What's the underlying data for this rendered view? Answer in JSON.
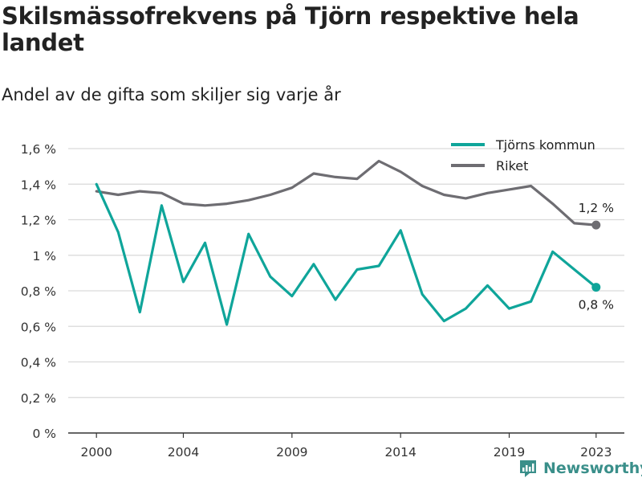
{
  "title": "Skilsmässofrekvens på Tjörn respektive hela landet",
  "subtitle": "Andel av de gifta som skiljer sig varje år",
  "brand": {
    "name": "Newsworthy",
    "icon": "newsworthy-logo-icon"
  },
  "colors": {
    "tjorn": "#0fa59a",
    "riket": "#6e6d72",
    "grid": "#d9d9d9",
    "axis": "#333333",
    "brand": "#3a8f8a"
  },
  "chart_data": {
    "type": "line",
    "x": [
      2000,
      2001,
      2002,
      2003,
      2004,
      2005,
      2006,
      2007,
      2008,
      2009,
      2010,
      2011,
      2012,
      2013,
      2014,
      2015,
      2016,
      2017,
      2018,
      2019,
      2020,
      2021,
      2022,
      2023
    ],
    "xticks": [
      2000,
      2004,
      2009,
      2014,
      2019,
      2023
    ],
    "xtick_labels": [
      "2000",
      "2004",
      "2009",
      "2014",
      "2019",
      "2023"
    ],
    "xlim": [
      1998.7,
      2024.3
    ],
    "ylim": [
      0,
      1.6
    ],
    "yticks": [
      0,
      0.2,
      0.4,
      0.6,
      0.8,
      1.0,
      1.2,
      1.4,
      1.6
    ],
    "ytick_labels": [
      "0 %",
      "0,2 %",
      "0,4 %",
      "0,6 %",
      "0,8 %",
      "1 %",
      "1,2 %",
      "1,4 %",
      "1,6 %"
    ],
    "grid": true,
    "legend": "top-right",
    "xlabel": "",
    "ylabel": "",
    "series": [
      {
        "name": "Tjörns kommun",
        "color": "#0fa59a",
        "values": [
          1.4,
          1.13,
          0.68,
          1.28,
          0.85,
          1.07,
          0.61,
          1.12,
          0.88,
          0.77,
          0.95,
          0.75,
          0.92,
          0.94,
          1.14,
          0.78,
          0.63,
          0.7,
          0.83,
          0.7,
          0.74,
          1.02,
          0.92,
          0.82
        ],
        "end_label": "0,8 %"
      },
      {
        "name": "Riket",
        "color": "#6e6d72",
        "values": [
          1.36,
          1.34,
          1.36,
          1.35,
          1.29,
          1.28,
          1.29,
          1.31,
          1.34,
          1.38,
          1.46,
          1.44,
          1.43,
          1.53,
          1.47,
          1.39,
          1.34,
          1.32,
          1.35,
          1.37,
          1.39,
          1.29,
          1.18,
          1.17
        ],
        "end_label": "1,2 %"
      }
    ]
  }
}
